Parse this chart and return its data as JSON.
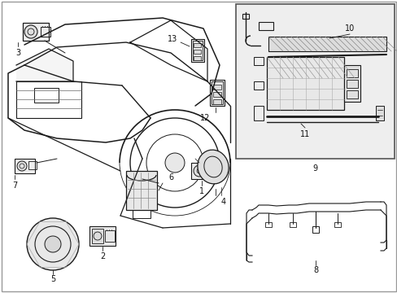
{
  "bg_color": "#ffffff",
  "line_color": "#1a1a1a",
  "inset_bg": "#f0f0f0",
  "figsize": [
    4.89,
    3.6
  ],
  "dpi": 100
}
